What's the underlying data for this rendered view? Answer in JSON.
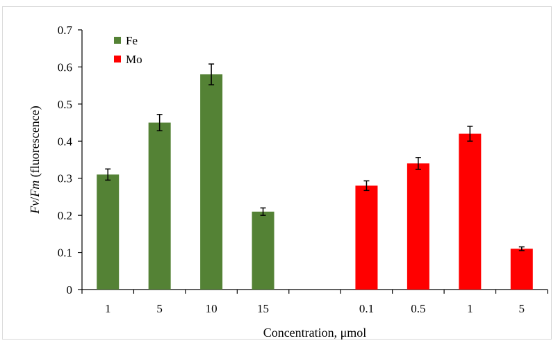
{
  "chart_data": {
    "type": "bar",
    "xlabel": "Concentration, μmol",
    "ylabel_parts": [
      {
        "text": "Fv",
        "italic": true
      },
      {
        "text": "/",
        "italic": false
      },
      {
        "text": "Fm",
        "italic": true
      },
      {
        "text": " (fluorescence)",
        "italic": false
      }
    ],
    "ylim": [
      0,
      0.7
    ],
    "yticks": [
      0,
      0.1,
      0.2,
      0.3,
      0.4,
      0.5,
      0.6,
      0.7
    ],
    "ytick_labels": [
      "0",
      "0.1",
      "0.2",
      "0.3",
      "0.4",
      "0.5",
      "0.6",
      "0.7"
    ],
    "grid": false,
    "legend_position": "top-left",
    "categories": [
      "1",
      "5",
      "10",
      "15",
      "",
      "0.1",
      "0.5",
      "1",
      "5"
    ],
    "series": [
      {
        "name": "Fe",
        "color": "#548235",
        "values": [
          0.31,
          0.45,
          0.58,
          0.21,
          null,
          null,
          null,
          null,
          null
        ],
        "errors": [
          0.015,
          0.022,
          0.028,
          0.01,
          null,
          null,
          null,
          null,
          null
        ]
      },
      {
        "name": "Mo",
        "color": "#ff0000",
        "values": [
          null,
          null,
          null,
          null,
          null,
          0.28,
          0.34,
          0.42,
          0.11
        ],
        "errors": [
          null,
          null,
          null,
          null,
          null,
          0.013,
          0.016,
          0.02,
          0.005
        ]
      }
    ]
  }
}
